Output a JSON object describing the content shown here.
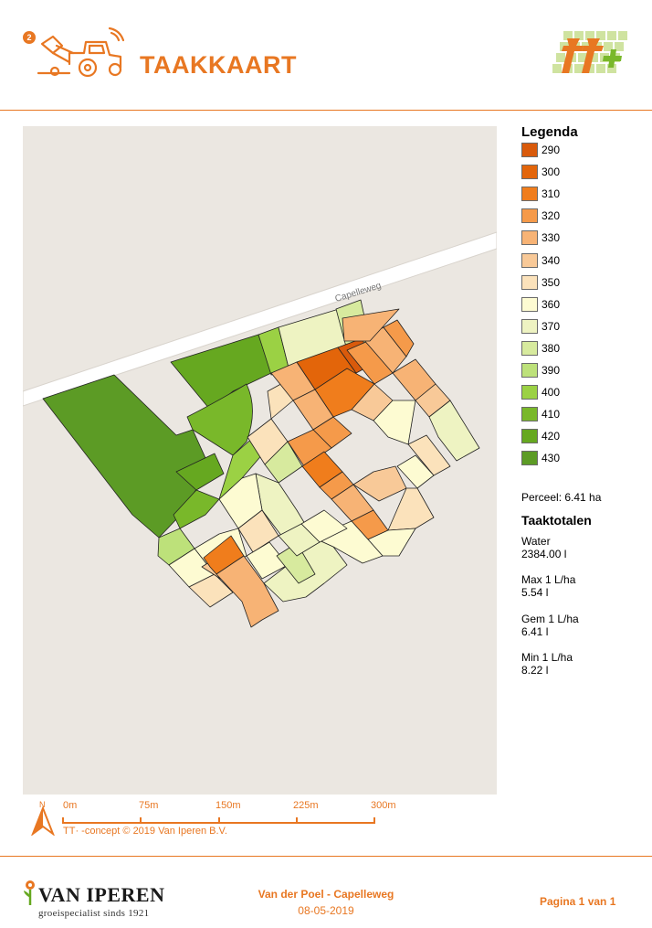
{
  "header": {
    "badge_number": "2",
    "title": "TAAKKAART",
    "tractor_icon": "tractor-icon",
    "brand_logo": "tt-logo"
  },
  "map": {
    "road_label": "Capelleweg",
    "background_color": "#ebe7e1"
  },
  "legend": {
    "title": "Legenda",
    "items": [
      {
        "label": "290",
        "color": "#d95a0b"
      },
      {
        "label": "300",
        "color": "#e3650a"
      },
      {
        "label": "310",
        "color": "#f07d1c"
      },
      {
        "label": "320",
        "color": "#f59a4a"
      },
      {
        "label": "330",
        "color": "#f7b375"
      },
      {
        "label": "340",
        "color": "#f8c998"
      },
      {
        "label": "350",
        "color": "#fbe2bb"
      },
      {
        "label": "360",
        "color": "#fdfbd2"
      },
      {
        "label": "370",
        "color": "#eef3c2"
      },
      {
        "label": "380",
        "color": "#d7ea9e"
      },
      {
        "label": "390",
        "color": "#bde17a"
      },
      {
        "label": "400",
        "color": "#9bd144"
      },
      {
        "label": "410",
        "color": "#79b82a"
      },
      {
        "label": "420",
        "color": "#66a820"
      },
      {
        "label": "430",
        "color": "#5c9b25"
      }
    ]
  },
  "perceel": "Perceel: 6.41 ha",
  "taaktotalen": {
    "title": "Taaktotalen",
    "entries": [
      {
        "label": "Water",
        "value": "2384.00 l"
      },
      {
        "label": "Max 1 L/ha",
        "value": "5.54 l"
      },
      {
        "label": "Gem 1 L/ha",
        "value": "6.41 l"
      },
      {
        "label": "Min 1 L/ha",
        "value": "8.22 l"
      }
    ]
  },
  "scale_bar": {
    "north": "N",
    "ticks": [
      "0m",
      "75m",
      "150m",
      "225m",
      "300m"
    ],
    "copyright": "TT· -concept © 2019 Van Iperen B.V."
  },
  "footer": {
    "company": "VAN IPEREN",
    "tagline": "groeispecialist sinds 1921",
    "project": "Van der Poel - Capelleweg",
    "date": "08-05-2019",
    "page": "Pagina 1 van 1"
  }
}
